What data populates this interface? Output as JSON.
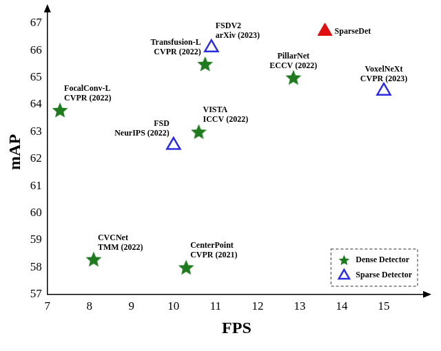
{
  "chart_data": {
    "type": "scatter",
    "x_label": "FPS",
    "y_label": "mAP",
    "xlim": [
      7,
      16
    ],
    "xticks": [
      7,
      8,
      9,
      10,
      11,
      12,
      13,
      14,
      15
    ],
    "ylim": [
      57,
      67.5
    ],
    "yticks": [
      57,
      58,
      59,
      60,
      61,
      62,
      63,
      64,
      65,
      66,
      67
    ],
    "grid": false,
    "legend": "lower right",
    "series": [
      {
        "name": "Dense Detector",
        "color": "#1f7a1f",
        "marker": "star",
        "x": [
          7.3,
          8.1,
          10.3,
          10.6,
          10.75,
          12.85
        ],
        "values": [
          63.8,
          58.3,
          58.0,
          63.0,
          65.5,
          65.0
        ],
        "point_labels": [
          [
            "FocalConv-L",
            "CVPR (2022)"
          ],
          [
            "CVCNet",
            "TMM (2022)"
          ],
          [
            "CenterPoint",
            "CVPR (2021)"
          ],
          [
            "VISTA",
            "ICCV (2022)"
          ],
          [
            "Transfusion-L",
            "CVPR (2022)"
          ],
          [
            "PillarNet",
            "ECCV (2022)"
          ]
        ]
      },
      {
        "name": "Sparse Detector",
        "color": "#2b2be0",
        "marker": "open triangle",
        "x": [
          10.0,
          10.9,
          15.0
        ],
        "values": [
          62.5,
          66.1,
          64.5
        ],
        "point_labels": [
          [
            "FSD",
            "NeurIPS (2022)"
          ],
          [
            "FSDV2",
            "arXiv (2023)"
          ],
          [
            "VoxelNeXt",
            "CVPR (2023)"
          ]
        ]
      },
      {
        "color": "#e01010",
        "marker": "triangle",
        "x": [
          13.6
        ],
        "values": [
          66.7
        ],
        "point_labels": [
          [
            "SparseDet"
          ]
        ]
      }
    ]
  }
}
